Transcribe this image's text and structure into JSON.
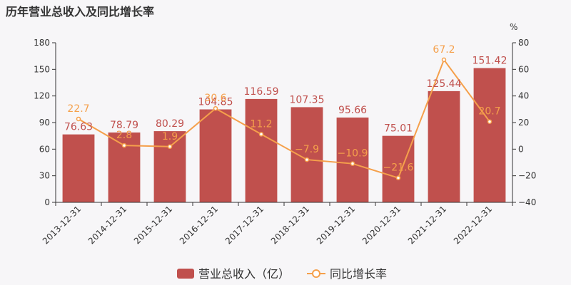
{
  "chart_data": {
    "type": "bar",
    "title": "历年营业总收入及同比增长率",
    "categories": [
      "2013-12-31",
      "2014-12-31",
      "2015-12-31",
      "2016-12-31",
      "2017-12-31",
      "2018-12-31",
      "2019-12-31",
      "2020-12-31",
      "2021-12-31",
      "2022-12-31"
    ],
    "series": [
      {
        "name": "营业总收入（亿）",
        "type": "bar",
        "axis": "left",
        "values": [
          76.63,
          78.79,
          80.29,
          104.85,
          116.59,
          107.35,
          95.66,
          75.01,
          125.44,
          151.42
        ],
        "labels": [
          "76.63",
          "78.79",
          "80.29",
          "104.85",
          "116.59",
          "107.35",
          "95.66",
          "75.01",
          "125.44",
          "151.42"
        ]
      },
      {
        "name": "同比增长率",
        "type": "line",
        "axis": "right",
        "values": [
          22.7,
          2.8,
          1.9,
          30.6,
          11.2,
          -7.9,
          -10.9,
          -21.6,
          67.2,
          20.7
        ],
        "labels": [
          "22.7",
          "2.8",
          "1.9",
          "30.6",
          "11.2",
          "−7.9",
          "−10.9",
          "−21.6",
          "67.2",
          "20.7"
        ]
      }
    ],
    "y_left": {
      "ylim": [
        0,
        180
      ],
      "ticks": [
        0,
        30,
        60,
        90,
        120,
        150,
        180
      ]
    },
    "y_right": {
      "ylim": [
        -40,
        80
      ],
      "ticks": [
        "−40",
        "−20",
        "0",
        "20",
        "40",
        "60",
        "80"
      ],
      "unit": "%"
    },
    "grid": false,
    "legend_position": "bottom",
    "colors": {
      "bar": "#c0504d",
      "line": "#f5a04b",
      "background": "#f7f6f8"
    }
  }
}
